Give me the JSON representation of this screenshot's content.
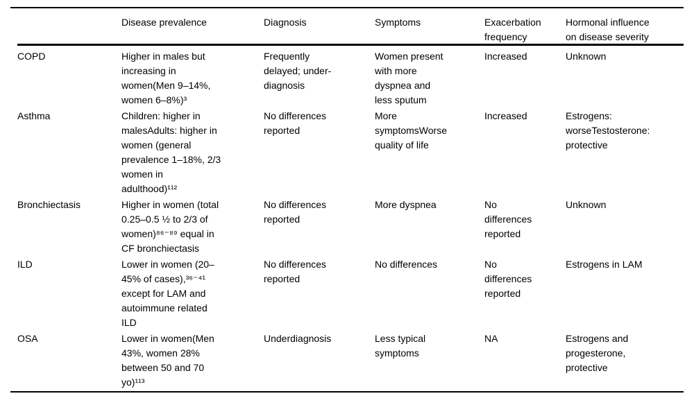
{
  "page": {
    "background_color": "#ffffff",
    "text_color": "#000000",
    "rule_color": "#000000"
  },
  "table": {
    "columns": [
      {
        "label": ""
      },
      {
        "label": "Disease prevalence"
      },
      {
        "label": "Diagnosis"
      },
      {
        "label": "Symptoms"
      },
      {
        "label": "Exacerbation\nfrequency"
      },
      {
        "label": "Hormonal influence\non disease severity"
      }
    ],
    "rows": [
      {
        "disease": "COPD",
        "prevalence": "Higher in males but\nincreasing in\nwomen(Men 9–14%,\nwomen 6–8%)³",
        "diagnosis": "Frequently\ndelayed; under-\ndiagnosis",
        "symptoms": "Women present\nwith more\ndyspnea and\nless sputum",
        "exacerbation": "Increased",
        "hormonal": "Unknown"
      },
      {
        "disease": "Asthma",
        "prevalence": "Children: higher in\nmalesAdults: higher in\nwomen (general\nprevalence 1–18%, 2/3\nwomen in\nadulthood)¹¹²",
        "diagnosis": "No differences\nreported",
        "symptoms": "More\nsymptomsWorse\nquality of life",
        "exacerbation": "Increased",
        "hormonal": "Estrogens:\nworseTestosterone:\nprotective"
      },
      {
        "disease": "Bronchiectasis",
        "prevalence": "Higher in women (total\n0.25–0.5 ½ to 2/3 of\nwomen)⁸⁶⁻⁸⁹ equal in\nCF bronchiectasis",
        "diagnosis": "No differences\nreported",
        "symptoms": "More dyspnea",
        "exacerbation": "No\ndifferences\nreported",
        "hormonal": "Unknown"
      },
      {
        "disease": "ILD",
        "prevalence": "Lower in women (20–\n45% of cases),³⁶⁻⁴¹\nexcept for LAM and\nautoimmune related\nILD",
        "diagnosis": "No differences\nreported",
        "symptoms": "No differences",
        "exacerbation": "No\ndifferences\nreported",
        "hormonal": "Estrogens in LAM"
      },
      {
        "disease": "OSA",
        "prevalence": "Lower in women(Men\n43%, women 28%\nbetween 50 and 70\nyo)¹¹³",
        "diagnosis": "Underdiagnosis",
        "symptoms": "Less typical\nsymptoms",
        "exacerbation": "NA",
        "hormonal": "Estrogens and\nprogesterone,\nprotective"
      }
    ]
  }
}
